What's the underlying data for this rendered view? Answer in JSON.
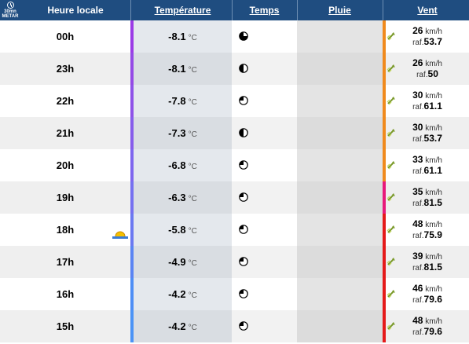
{
  "header": {
    "metar_top": "30mn",
    "metar_bottom": "METAR",
    "hour": "Heure locale",
    "temperature": "Température",
    "weather": "Temps",
    "rain": "Pluie",
    "wind": "Vent"
  },
  "units": {
    "temp": "°C",
    "speed": "km/h",
    "gust_prefix": "raf."
  },
  "colors": {
    "header_bg": "#1f4d80"
  },
  "rows": [
    {
      "hour": "00h",
      "temp": "-8.1",
      "moon": "waning-gibbous",
      "speed": "26",
      "gust": "53.7",
      "temp_color": "#9b3be6",
      "wind_color": "#f08a1d"
    },
    {
      "hour": "23h",
      "temp": "-8.1",
      "moon": "half",
      "speed": "26",
      "gust": "50",
      "temp_color": "#9449e6",
      "wind_color": "#f08a1d"
    },
    {
      "hour": "22h",
      "temp": "-7.8",
      "moon": "quarter",
      "speed": "30",
      "gust": "61.1",
      "temp_color": "#8e52e8",
      "wind_color": "#f08a1d"
    },
    {
      "hour": "21h",
      "temp": "-7.3",
      "moon": "half",
      "speed": "30",
      "gust": "53.7",
      "temp_color": "#865ceb",
      "wind_color": "#f08a1d"
    },
    {
      "hour": "20h",
      "temp": "-6.8",
      "moon": "quarter",
      "speed": "33",
      "gust": "61.1",
      "temp_color": "#7e66ee",
      "wind_color": "#f08a1d"
    },
    {
      "hour": "19h",
      "temp": "-6.3",
      "moon": "quarter",
      "speed": "35",
      "gust": "81.5",
      "temp_color": "#7570f0",
      "wind_color": "#e8197a"
    },
    {
      "hour": "18h",
      "temp": "-5.8",
      "moon": "quarter",
      "speed": "48",
      "gust": "75.9",
      "temp_color": "#6b79f1",
      "wind_color": "#e51a1a"
    },
    {
      "hour": "17h",
      "temp": "-4.9",
      "moon": "quarter",
      "speed": "39",
      "gust": "81.5",
      "temp_color": "#5a84f3",
      "wind_color": "#e51a1a"
    },
    {
      "hour": "16h",
      "temp": "-4.2",
      "moon": "quarter",
      "speed": "46",
      "gust": "79.6",
      "temp_color": "#4e8ef5",
      "wind_color": "#e51a1a"
    },
    {
      "hour": "15h",
      "temp": "-4.2",
      "moon": "quarter",
      "speed": "48",
      "gust": "79.6",
      "temp_color": "#4b93f6",
      "wind_color": "#e51a1a"
    }
  ],
  "icons": {
    "metar": "clock-icon",
    "sunset": "sunset-icon",
    "wind": "wind-arrow-icon",
    "weather": "moon-phase-icon"
  }
}
